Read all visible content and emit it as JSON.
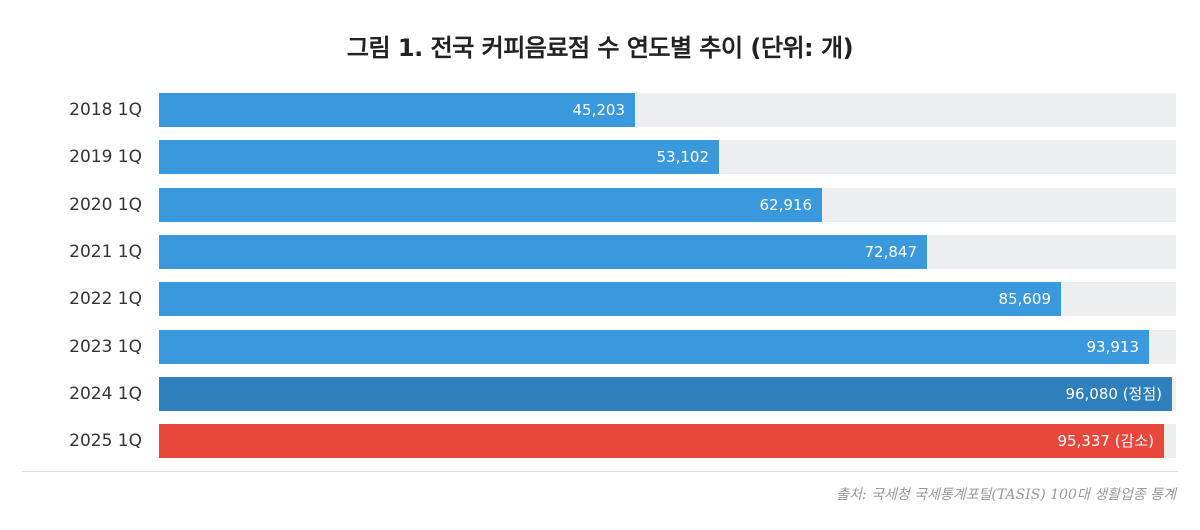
{
  "chart_data": {
    "type": "bar",
    "orientation": "horizontal",
    "title": "그림 1. 전국 커피음료점 수 연도별 추이 (단위: 개)",
    "categories": [
      "2018 1Q",
      "2019 1Q",
      "2020 1Q",
      "2021 1Q",
      "2022 1Q",
      "2023 1Q",
      "2024 1Q",
      "2025 1Q"
    ],
    "values": [
      45203,
      53102,
      62916,
      72847,
      85609,
      93913,
      96080,
      95337
    ],
    "value_labels": [
      "45,203",
      "53,102",
      "62,916",
      "72,847",
      "85,609",
      "93,913",
      "96,080 (정점)",
      "95,337 (감소)"
    ],
    "bar_colors": [
      "#3a98dc",
      "#3a98dc",
      "#3a98dc",
      "#3a98dc",
      "#3a98dc",
      "#3a98dc",
      "#2e7fbb",
      "#e8483c"
    ],
    "track_color": "#eceeef",
    "xlim": [
      0,
      96500
    ],
    "grid": false,
    "legend": "none"
  },
  "source": "출처: 국세청 국세통계포털(TASIS) 100대 생활업종 통계"
}
